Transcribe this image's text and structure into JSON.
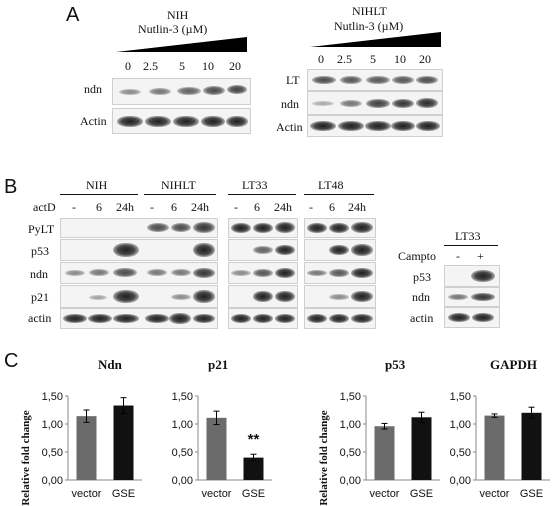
{
  "panel_a": {
    "letter": "A",
    "nih": {
      "title": "NIH",
      "treatment": "Nutlin-3 (µM)",
      "doses": [
        "0",
        "2.5",
        "5",
        "10",
        "20"
      ],
      "rows": [
        "ndn",
        "Actin"
      ]
    },
    "nihlt": {
      "title": "NIHLT",
      "treatment": "Nutlin-3 (µM)",
      "doses": [
        "0",
        "2.5",
        "5",
        "10",
        "20"
      ],
      "rows": [
        "LT",
        "ndn",
        "Actin"
      ]
    }
  },
  "panel_b": {
    "letter": "B",
    "groups": [
      "NIH",
      "NIHLT",
      "LT33",
      "LT48"
    ],
    "actd_label": "actD",
    "lanes": [
      "-",
      "6",
      "24h"
    ],
    "rows": [
      "PyLT",
      "p53",
      "ndn",
      "p21",
      "actin"
    ],
    "campto": {
      "title": "LT33",
      "label": "Campto",
      "lanes": [
        "-",
        "+"
      ],
      "rows": [
        "p53",
        "ndn",
        "actin"
      ]
    }
  },
  "panel_c": {
    "letter": "C",
    "y_label": "Relative fold change",
    "colors": {
      "vector": "#6b6b6b",
      "gse": "#111111"
    },
    "chart_data": [
      {
        "type": "bar",
        "title": "Ndn",
        "categories": [
          "vector",
          "GSE"
        ],
        "values": [
          1.14,
          1.33
        ],
        "errors": [
          0.11,
          0.14
        ],
        "ylim": [
          0,
          1.5
        ],
        "yticks": [
          "0,00",
          "0,50",
          "1,00",
          "1,50"
        ],
        "ylabel": "Relative fold change",
        "annotation": ""
      },
      {
        "type": "bar",
        "title": "p21",
        "categories": [
          "vector",
          "GSE"
        ],
        "values": [
          1.11,
          0.4
        ],
        "errors": [
          0.12,
          0.06
        ],
        "ylim": [
          0,
          1.5
        ],
        "yticks": [
          "0,00",
          "0,50",
          "1,00",
          "1,50"
        ],
        "ylabel": "",
        "annotation": "**"
      },
      {
        "type": "bar",
        "title": "p53",
        "categories": [
          "vector",
          "GSE"
        ],
        "values": [
          0.96,
          1.12
        ],
        "errors": [
          0.05,
          0.09
        ],
        "ylim": [
          0,
          1.5
        ],
        "yticks": [
          "0,00",
          "0,50",
          "1,00",
          "1,50"
        ],
        "ylabel": "Relative fold change",
        "annotation": ""
      },
      {
        "type": "bar",
        "title": "GAPDH",
        "categories": [
          "vector",
          "GSE"
        ],
        "values": [
          1.15,
          1.2
        ],
        "errors": [
          0.03,
          0.1
        ],
        "ylim": [
          0,
          1.5
        ],
        "yticks": [
          "0,00",
          "0,50",
          "1,00",
          "1,50"
        ],
        "ylabel": "",
        "annotation": ""
      }
    ]
  }
}
